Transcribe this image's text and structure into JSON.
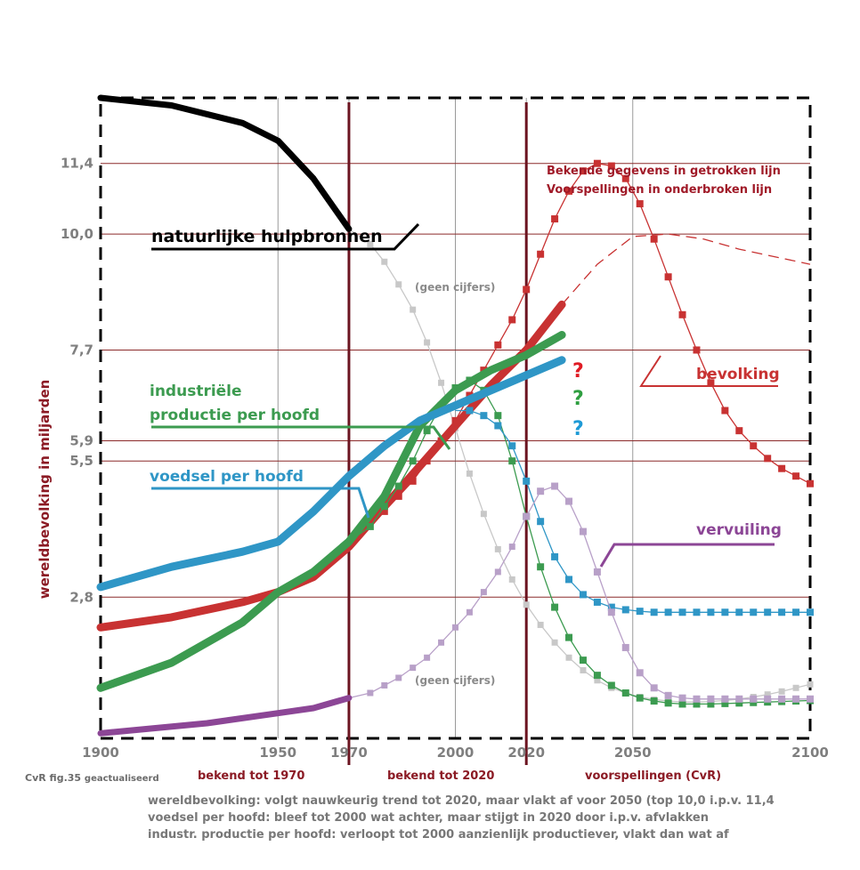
{
  "chart_data": {
    "type": "line",
    "xlim": [
      1900,
      2100
    ],
    "x_ticks": [
      "1900",
      "1950",
      "1970",
      "2000",
      "2020",
      "2050",
      "2100"
    ],
    "x_tick_values": [
      1900,
      1950,
      1970,
      2000,
      2020,
      2050,
      2100
    ],
    "y_axis_label": "wereldbevolking in miljarden",
    "y_ticks": [
      "11,4",
      "10,0",
      "7,7",
      "5,9",
      "5,5",
      "2,8"
    ],
    "y_tick_values": [
      11.4,
      10.0,
      7.7,
      5.9,
      5.5,
      2.8
    ],
    "ylim": [
      0,
      12.7
    ],
    "gridlines": true,
    "vertical_markers": [
      1970,
      2020
    ],
    "marker_labels": [
      "bekend tot 1970",
      "bekend tot 2020",
      "voorspellingen  (CvR)"
    ],
    "legend_note": [
      "Bekende gegevens in getrokken lijn",
      "Voorspellingen in onderbroken lijn"
    ],
    "no_data_label": "(geen cijfers)",
    "question_mark": "?",
    "series": [
      {
        "name": "natuurlijke hulpbronnen",
        "color": "#000000",
        "known_1970": {
          "x": [
            1900,
            1920,
            1940,
            1950,
            1960,
            1970
          ],
          "y": [
            12.7,
            12.55,
            12.2,
            11.85,
            11.1,
            10.1
          ]
        },
        "forecast_1970": {
          "x": [
            1970,
            1976,
            1980,
            1984,
            1988,
            1992,
            1996,
            2000,
            2004,
            2008,
            2012,
            2016,
            2020,
            2024,
            2028,
            2032,
            2036,
            2040,
            2044,
            2048,
            2052,
            2056,
            2060,
            2064,
            2068,
            2072,
            2076,
            2080,
            2084,
            2088,
            2092,
            2096,
            2100
          ],
          "y": [
            10.1,
            9.8,
            9.45,
            9.0,
            8.5,
            7.85,
            7.05,
            6.15,
            5.25,
            4.45,
            3.75,
            3.15,
            2.65,
            2.25,
            1.9,
            1.6,
            1.35,
            1.15,
            1.0,
            0.9,
            0.82,
            0.77,
            0.74,
            0.72,
            0.72,
            0.73,
            0.75,
            0.78,
            0.82,
            0.87,
            0.93,
            1.0,
            1.07
          ]
        }
      },
      {
        "name": "bevolking",
        "color": "#c83232",
        "known_2020": {
          "x": [
            1900,
            1920,
            1940,
            1950,
            1960,
            1970,
            1980,
            1990,
            2000,
            2010,
            2020,
            2030
          ],
          "y": [
            2.2,
            2.4,
            2.7,
            2.9,
            3.2,
            3.8,
            4.6,
            5.4,
            6.2,
            7.0,
            7.7,
            8.6
          ]
        },
        "forecast_1970": {
          "x": [
            1970,
            1980,
            1984,
            1988,
            1992,
            1996,
            2000,
            2004,
            2008,
            2012,
            2016,
            2020,
            2024,
            2028,
            2032,
            2036,
            2040,
            2044,
            2048,
            2052,
            2056,
            2060,
            2064,
            2068,
            2072,
            2076,
            2080,
            2084,
            2088,
            2092,
            2096,
            2100
          ],
          "y": [
            3.8,
            4.5,
            4.8,
            5.1,
            5.5,
            5.9,
            6.3,
            6.8,
            7.3,
            7.8,
            8.3,
            8.9,
            9.6,
            10.3,
            10.85,
            11.25,
            11.4,
            11.35,
            11.1,
            10.6,
            9.9,
            9.15,
            8.4,
            7.7,
            7.05,
            6.5,
            6.1,
            5.8,
            5.55,
            5.35,
            5.2,
            5.05
          ]
        },
        "forecast_2020": {
          "x": [
            2030,
            2040,
            2050,
            2060,
            2070,
            2080,
            2090,
            2100
          ],
          "y": [
            8.6,
            9.4,
            9.95,
            10.0,
            9.9,
            9.7,
            9.55,
            9.4
          ]
        }
      },
      {
        "name": "industriële productie per hoofd",
        "color": "#3c9b50",
        "known_2020": {
          "x": [
            1900,
            1920,
            1940,
            1950,
            1960,
            1970,
            1980,
            1990,
            2000,
            2010,
            2020,
            2030
          ],
          "y": [
            1.0,
            1.5,
            2.3,
            2.9,
            3.3,
            3.9,
            4.8,
            6.2,
            6.9,
            7.3,
            7.6,
            8.0
          ]
        },
        "forecast_1970": {
          "x": [
            1970,
            1976,
            1980,
            1984,
            1988,
            1992,
            1996,
            2000,
            2004,
            2008,
            2012,
            2016,
            2020,
            2024,
            2028,
            2032,
            2036,
            2040,
            2044,
            2048,
            2052,
            2056,
            2060,
            2064,
            2068,
            2072,
            2076,
            2080,
            2084,
            2088,
            2092,
            2096,
            2100
          ],
          "y": [
            3.9,
            4.2,
            4.6,
            5.0,
            5.5,
            6.1,
            6.6,
            6.95,
            7.1,
            6.9,
            6.4,
            5.5,
            4.4,
            3.4,
            2.6,
            2.0,
            1.55,
            1.25,
            1.05,
            0.9,
            0.8,
            0.74,
            0.7,
            0.68,
            0.68,
            0.68,
            0.69,
            0.7,
            0.71,
            0.72,
            0.73,
            0.74,
            0.75
          ]
        }
      },
      {
        "name": "voedsel per hoofd",
        "color": "#2f96c6",
        "known_2020": {
          "x": [
            1900,
            1910,
            1920,
            1930,
            1940,
            1950,
            1960,
            1970,
            1980,
            1990,
            2000,
            2010,
            2020,
            2030
          ],
          "y": [
            3.0,
            3.2,
            3.4,
            3.55,
            3.7,
            3.9,
            4.5,
            5.2,
            5.8,
            6.3,
            6.6,
            6.9,
            7.2,
            7.5
          ]
        },
        "forecast_1970": {
          "x": [
            2000,
            2004,
            2008,
            2012,
            2016,
            2020,
            2024,
            2028,
            2032,
            2036,
            2040,
            2044,
            2048,
            2052,
            2056,
            2060,
            2064,
            2068,
            2072,
            2076,
            2080,
            2084,
            2088,
            2092,
            2096,
            2100
          ],
          "y": [
            6.5,
            6.5,
            6.4,
            6.2,
            5.8,
            5.1,
            4.3,
            3.6,
            3.15,
            2.85,
            2.7,
            2.6,
            2.55,
            2.52,
            2.5,
            2.5,
            2.5,
            2.5,
            2.5,
            2.5,
            2.5,
            2.5,
            2.5,
            2.5,
            2.5,
            2.5
          ]
        }
      },
      {
        "name": "vervuiling",
        "color": "#8c4696",
        "known_1970": {
          "x": [
            1900,
            1930,
            1950,
            1960,
            1970
          ],
          "y": [
            0.1,
            0.3,
            0.5,
            0.6,
            0.8
          ]
        },
        "forecast_1970": {
          "x": [
            1970,
            1976,
            1980,
            1984,
            1988,
            1992,
            1996,
            2000,
            2004,
            2008,
            2012,
            2016,
            2020,
            2024,
            2028,
            2032,
            2036,
            2040,
            2044,
            2048,
            2052,
            2056,
            2060,
            2064,
            2068,
            2072,
            2076,
            2080,
            2084,
            2088,
            2092,
            2096,
            2100
          ],
          "y": [
            0.8,
            0.9,
            1.05,
            1.2,
            1.4,
            1.6,
            1.9,
            2.2,
            2.5,
            2.9,
            3.3,
            3.8,
            4.4,
            4.9,
            5.0,
            4.7,
            4.1,
            3.3,
            2.5,
            1.8,
            1.3,
            1.0,
            0.85,
            0.8,
            0.78,
            0.78,
            0.78,
            0.78,
            0.78,
            0.78,
            0.78,
            0.78,
            0.78
          ]
        }
      }
    ]
  },
  "annotations": {
    "credit_main": "CvR fig.35",
    "credit_sub": "geactualiseerd",
    "notes": [
      "wereldbevolking: volgt nauwkeurig trend tot 2020, maar vlakt af voor 2050 (top 10,0 i.p.v. 11,4",
      "voedsel per hoofd: bleef tot 2000 wat achter, maar stijgt in 2020 door i.p.v. afvlakken",
      "industr. productie per hoofd: verloopt tot 2000 aanzienlijk productiever, vlakt dan wat af"
    ],
    "series_label_lines": {
      "industry": [
        "industriële",
        "productie per hoofd"
      ],
      "population": "bevolking",
      "pollution": "vervuiling"
    }
  }
}
